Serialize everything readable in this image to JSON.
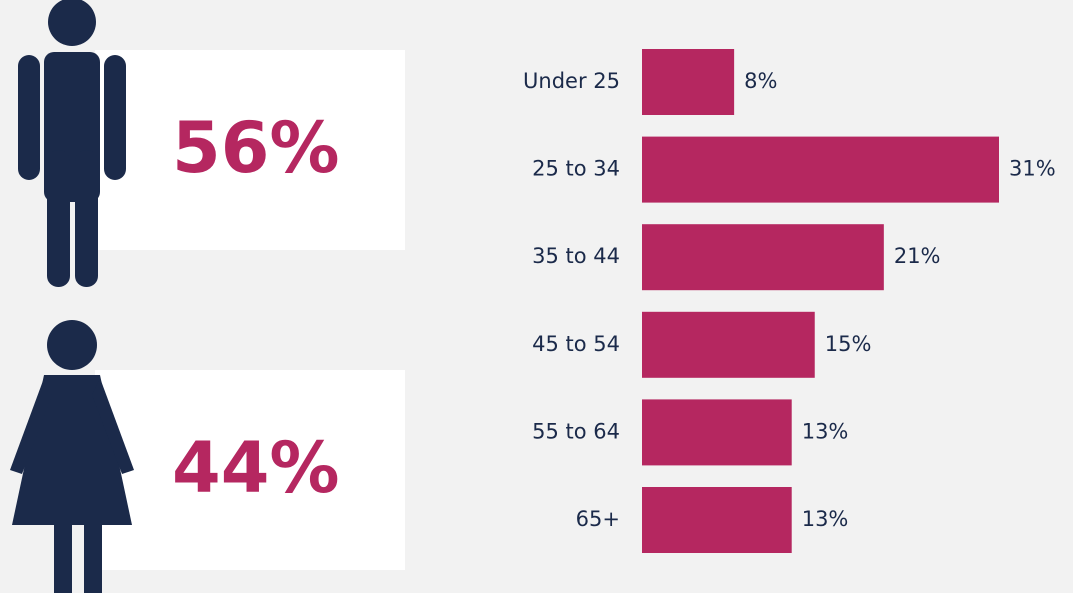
{
  "chart_data": [
    {
      "type": "pictogram",
      "values": [
        56,
        44
      ],
      "value_labels": [
        "56%",
        "44%"
      ],
      "color": "#b52760",
      "icon_color": "#1b2a4a"
    },
    {
      "type": "hbar",
      "categories": [
        "Under 25",
        "25 to 34",
        "35 to 44",
        "45 to 54",
        "55 to 64",
        "65+"
      ],
      "values": [
        8,
        31,
        21,
        15,
        13,
        13
      ],
      "value_labels": [
        "8%",
        "31%",
        "21%",
        "15%",
        "13%",
        "13%"
      ],
      "color": "#b52760",
      "xlim": [
        0,
        31
      ]
    }
  ]
}
